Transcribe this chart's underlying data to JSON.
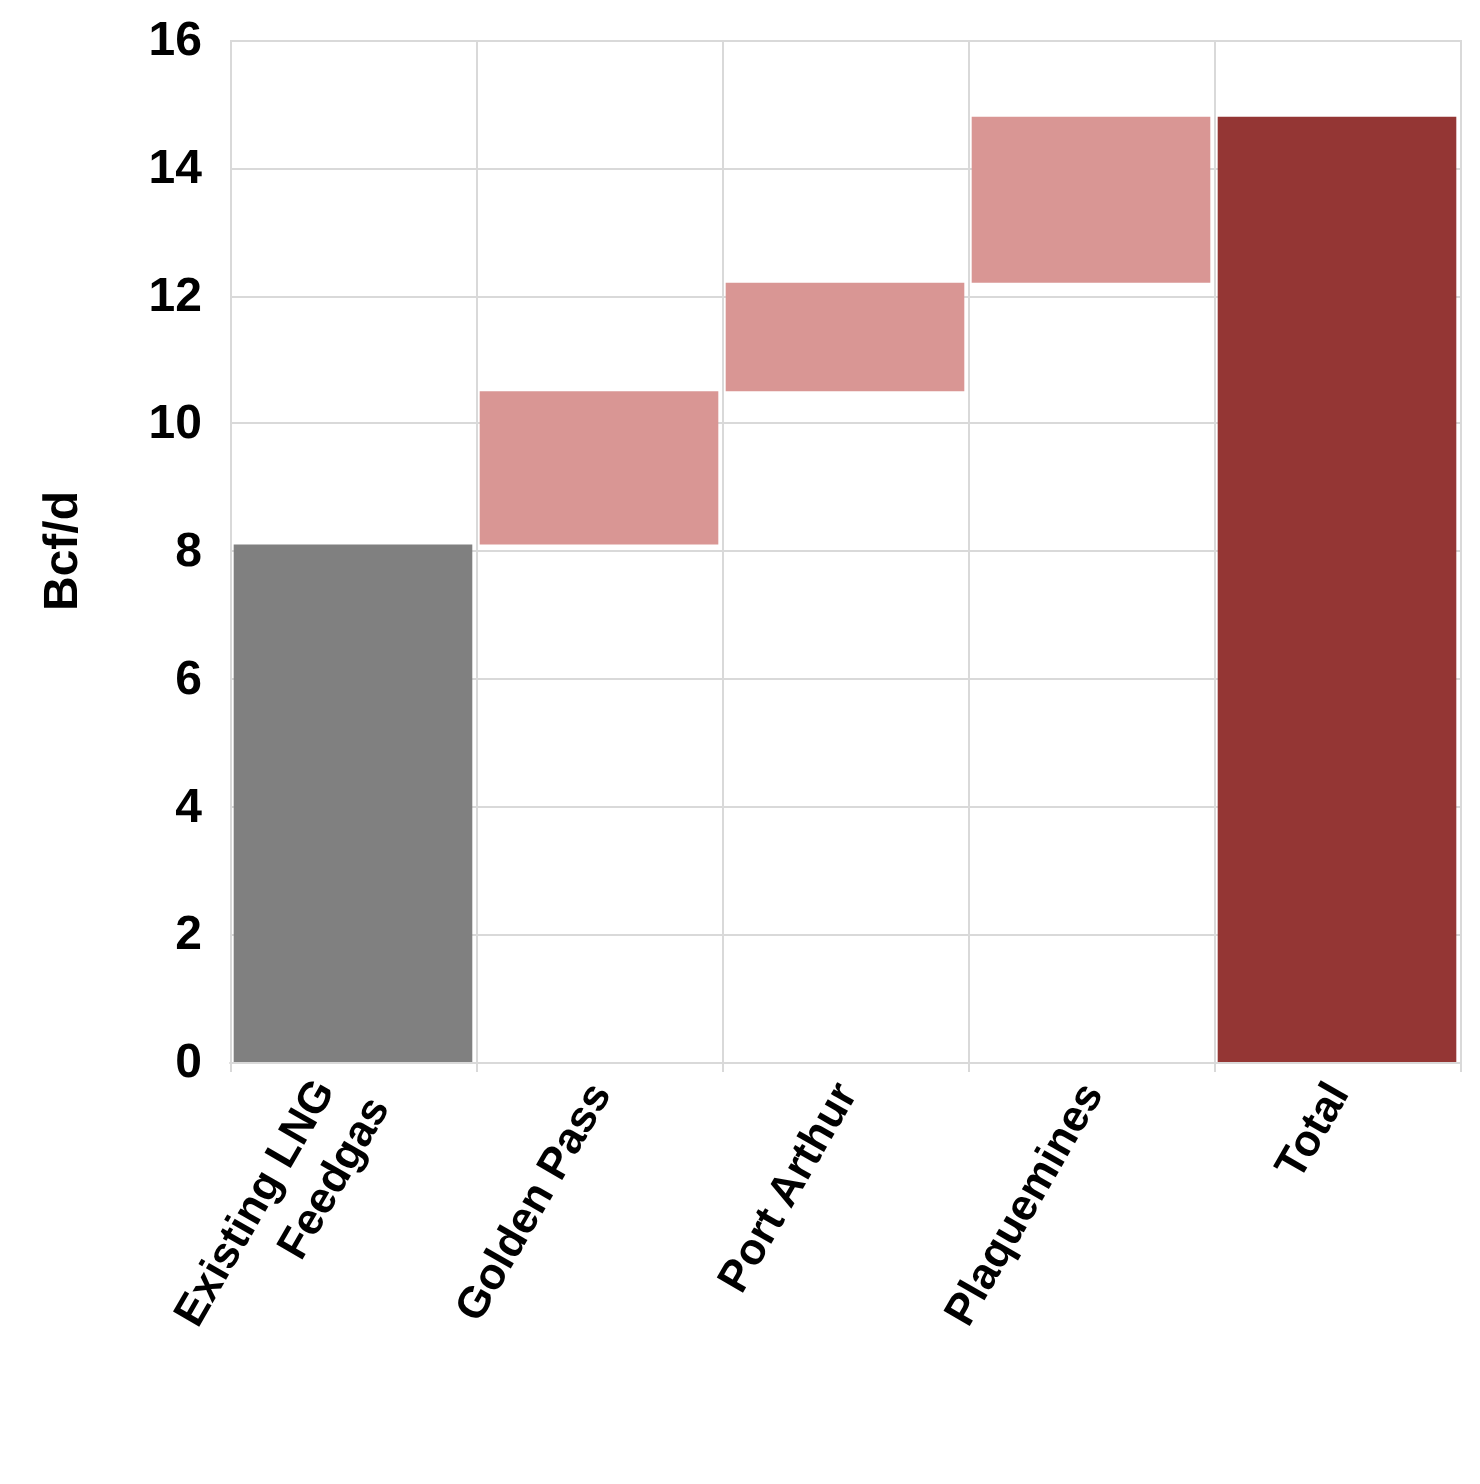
{
  "chart_data": {
    "type": "bar",
    "ylabel": "Bcf/d",
    "categories": [
      "Existing LNG Feedgas",
      "Golden Pass",
      "Port Arthur",
      "Plaquemines",
      "Total"
    ],
    "values": [
      8.1,
      2.4,
      1.7,
      2.6,
      14.8
    ],
    "base": [
      0,
      8.1,
      10.5,
      12.2,
      0
    ],
    "colors": [
      "#808080",
      "#d99694",
      "#d99694",
      "#d99694",
      "#943634"
    ],
    "ylim": [
      0,
      16
    ],
    "yticks": [
      0,
      2,
      4,
      6,
      8,
      10,
      12,
      14,
      16
    ],
    "grid": true
  }
}
